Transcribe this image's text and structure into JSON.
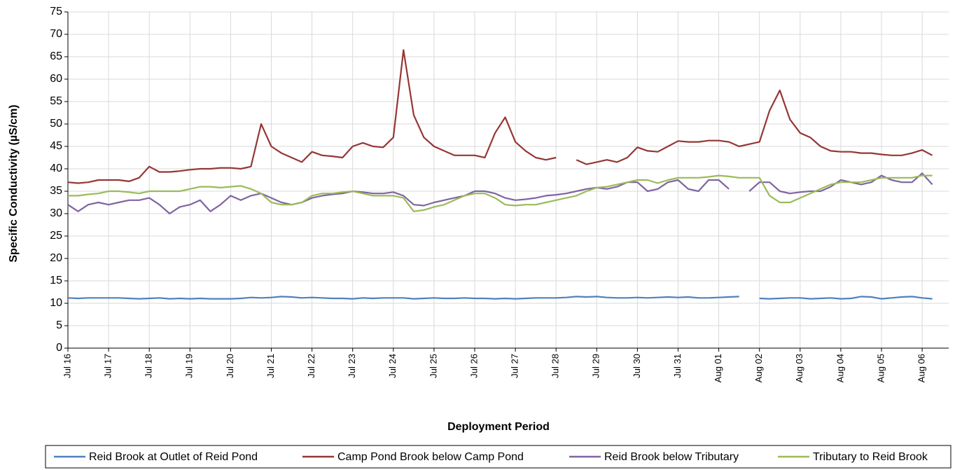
{
  "chart_data": {
    "type": "line",
    "x_label": "Deployment Period",
    "y_label": "Specific Conductivity (µS/cm)",
    "categories": [
      "Jul 16",
      null,
      null,
      null,
      "Jul 17",
      null,
      null,
      null,
      "Jul 18",
      null,
      null,
      null,
      "Jul 19",
      null,
      null,
      null,
      "Jul 20",
      null,
      null,
      null,
      "Jul 21",
      null,
      null,
      null,
      "Jul 22",
      null,
      null,
      null,
      "Jul 23",
      null,
      null,
      null,
      "Jul 24",
      null,
      null,
      null,
      "Jul 25",
      null,
      null,
      null,
      "Jul 26",
      null,
      null,
      null,
      "Jul 27",
      null,
      null,
      null,
      "Jul 28",
      null,
      null,
      null,
      "Jul 29",
      null,
      null,
      null,
      "Jul 30",
      null,
      null,
      null,
      "Jul 31",
      null,
      null,
      null,
      "Aug 01",
      null,
      null,
      null,
      "Aug 02",
      null,
      null,
      null,
      "Aug 03",
      null,
      null,
      null,
      "Aug 04",
      null,
      null,
      null,
      "Aug 05",
      null,
      null,
      null,
      "Aug 06",
      null,
      null,
      null
    ],
    "ylim": [
      0,
      75
    ],
    "yticks": [
      0,
      5,
      10,
      15,
      20,
      25,
      30,
      35,
      40,
      45,
      50,
      55,
      60,
      65,
      70,
      75
    ],
    "grid": true,
    "legend": "bottom",
    "series": [
      {
        "name": "Reid Brook at Outlet of Reid Pond",
        "color": "#4f81bd",
        "values": [
          11.2,
          11.1,
          11.2,
          11.2,
          11.2,
          11.2,
          11.1,
          11.0,
          11.1,
          11.2,
          11.0,
          11.1,
          11.0,
          11.1,
          11.0,
          11.0,
          11.0,
          11.1,
          11.3,
          11.2,
          11.3,
          11.5,
          11.4,
          11.2,
          11.3,
          11.2,
          11.1,
          11.1,
          11.0,
          11.2,
          11.1,
          11.2,
          11.2,
          11.2,
          11.0,
          11.1,
          11.2,
          11.1,
          11.1,
          11.2,
          11.1,
          11.1,
          11.0,
          11.1,
          11.0,
          11.1,
          11.2,
          11.2,
          11.2,
          11.3,
          11.5,
          11.4,
          11.5,
          11.3,
          11.2,
          11.2,
          11.3,
          11.2,
          11.3,
          11.4,
          11.3,
          11.4,
          11.2,
          11.2,
          11.3,
          11.4,
          11.5,
          null,
          11.1,
          11.0,
          11.1,
          11.2,
          11.2,
          11.0,
          11.1,
          11.2,
          11.0,
          11.1,
          11.5,
          11.4,
          11.0,
          11.2,
          11.4,
          11.5,
          11.2,
          11.0,
          null,
          null
        ]
      },
      {
        "name": "Camp Pond Brook below Camp Pond",
        "color": "#953735",
        "values": [
          37.0,
          36.8,
          37.0,
          37.5,
          37.5,
          37.5,
          37.2,
          38.0,
          40.5,
          39.3,
          39.3,
          39.5,
          39.8,
          40.0,
          40.0,
          40.2,
          40.2,
          40.0,
          40.5,
          50.0,
          45.0,
          43.5,
          42.5,
          41.5,
          43.8,
          43.0,
          42.8,
          42.5,
          45.0,
          45.8,
          45.0,
          44.8,
          47.0,
          66.5,
          52.0,
          47.0,
          45.0,
          44.0,
          43.0,
          43.0,
          43.0,
          42.5,
          48.0,
          51.5,
          46.0,
          44.0,
          42.5,
          42.0,
          42.5,
          null,
          42.0,
          41.0,
          41.5,
          42.0,
          41.5,
          42.5,
          44.8,
          44.0,
          43.8,
          45.0,
          46.2,
          46.0,
          46.0,
          46.3,
          46.3,
          46.0,
          45.0,
          45.5,
          46.0,
          53.0,
          57.5,
          51.0,
          48.0,
          47.0,
          45.0,
          44.0,
          43.8,
          43.8,
          43.5,
          43.5,
          43.2,
          43.0,
          43.0,
          43.5,
          44.2,
          43.0,
          null,
          null
        ]
      },
      {
        "name": "Reid Brook below Tributary",
        "color": "#8064a2",
        "values": [
          32.0,
          30.5,
          32.0,
          32.5,
          32.0,
          32.5,
          33.0,
          33.0,
          33.5,
          32.0,
          30.0,
          31.5,
          32.0,
          33.0,
          30.5,
          32.0,
          34.0,
          33.0,
          34.0,
          34.5,
          33.5,
          32.5,
          32.0,
          32.5,
          33.5,
          34.0,
          34.3,
          34.5,
          35.0,
          34.8,
          34.5,
          34.5,
          34.8,
          34.0,
          32.0,
          31.8,
          32.5,
          33.0,
          33.5,
          34.0,
          35.0,
          35.0,
          34.5,
          33.5,
          33.0,
          33.2,
          33.5,
          34.0,
          34.2,
          34.5,
          35.0,
          35.5,
          35.8,
          35.5,
          36.0,
          37.0,
          37.0,
          35.0,
          35.5,
          37.0,
          37.5,
          35.5,
          35.0,
          37.5,
          37.5,
          35.5,
          null,
          35.0,
          37.0,
          37.0,
          35.0,
          34.5,
          34.8,
          35.0,
          35.0,
          36.0,
          37.5,
          37.0,
          36.5,
          37.0,
          38.5,
          37.5,
          37.0,
          37.0,
          39.0,
          36.5,
          null,
          null
        ]
      },
      {
        "name": "Tributary to Reid Brook",
        "color": "#9bbb59",
        "values": [
          34.0,
          34.0,
          34.3,
          34.5,
          35.0,
          35.0,
          34.8,
          34.5,
          35.0,
          35.0,
          35.0,
          35.0,
          35.5,
          36.0,
          36.0,
          35.8,
          36.0,
          36.2,
          35.5,
          34.5,
          32.5,
          32.0,
          32.0,
          32.5,
          34.0,
          34.5,
          34.5,
          34.8,
          35.0,
          34.5,
          34.0,
          34.0,
          34.0,
          33.5,
          30.5,
          30.8,
          31.5,
          32.0,
          33.0,
          34.0,
          34.5,
          34.5,
          33.5,
          32.0,
          31.8,
          32.0,
          32.0,
          32.5,
          33.0,
          33.5,
          34.0,
          35.0,
          35.8,
          36.0,
          36.5,
          37.0,
          37.5,
          37.5,
          36.8,
          37.5,
          38.0,
          38.0,
          38.0,
          38.2,
          38.5,
          38.3,
          38.0,
          38.0,
          38.0,
          34.0,
          32.5,
          32.5,
          33.5,
          34.5,
          35.5,
          36.5,
          37.0,
          37.0,
          37.0,
          37.5,
          38.0,
          38.0,
          38.0,
          38.0,
          38.5,
          38.5,
          null,
          null
        ]
      }
    ]
  }
}
